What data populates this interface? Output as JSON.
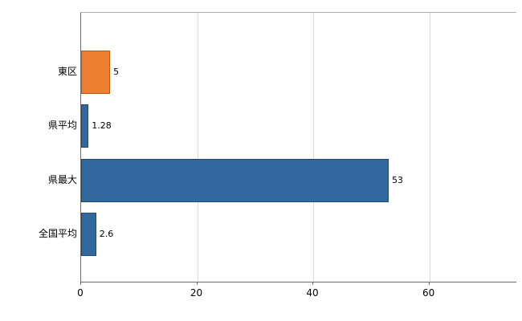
{
  "chart_data": {
    "type": "bar",
    "orientation": "horizontal",
    "title": "",
    "xlabel": "",
    "ylabel": "",
    "categories": [
      "東区",
      "県平均",
      "県最大",
      "全国平均"
    ],
    "values": [
      5,
      1.28,
      53,
      2.6
    ],
    "value_labels": [
      "5",
      "1.28",
      "53",
      "2.6"
    ],
    "bar_colors": [
      "#ED7D31",
      "#31689E",
      "#31689E",
      "#31689E"
    ],
    "bar_border_colors": [
      "#B85C17",
      "#234B75",
      "#234B75",
      "#234B75"
    ],
    "xlim": [
      0,
      75
    ],
    "xticks": [
      0,
      20,
      40,
      60
    ],
    "xtick_labels": [
      "0",
      "20",
      "40",
      "60"
    ],
    "grid": true,
    "legend": false,
    "colors": {
      "grid": "#D9D9D9",
      "axis": "#6E6E6E",
      "background": "#FFFFFF",
      "text": "#000000"
    }
  }
}
